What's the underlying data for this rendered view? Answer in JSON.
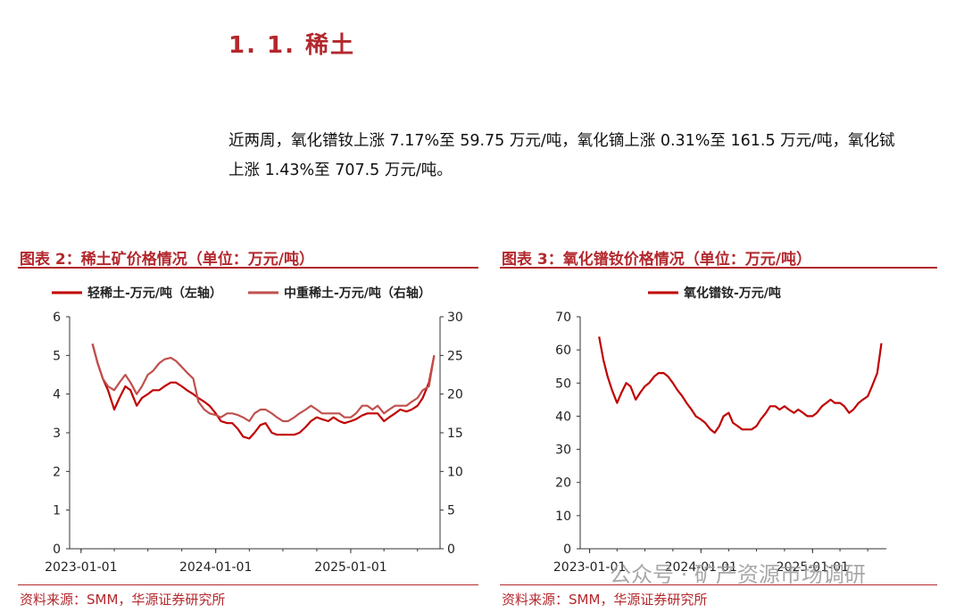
{
  "section": {
    "title": "1. 1. 稀土",
    "paragraph_line1": "近两周，氧化镨钕上涨 7.17%至 59.75 万元/吨，氧化镝上涨 0.31%至 161.5 万元/吨，氧化铽",
    "paragraph_line2": "上涨 1.43%至 707.5 万元/吨。"
  },
  "figure2": {
    "title": "图表 2：稀土矿价格情况（单位：万元/吨）",
    "source": "资料来源：SMM，华源证券研究所"
  },
  "figure3": {
    "title": "图表 3：氧化镨钕价格情况（单位：万元/吨）",
    "source": "资料来源：SMM，华源证券研究所"
  },
  "watermark": "公众号 · 矿产资源市场调研",
  "colors": {
    "accent": "#b3282d",
    "series_light": "#c00000",
    "series_heavy": "#c0504d"
  },
  "chart_data": [
    {
      "type": "line",
      "x_ticks": [
        "2023-01-01",
        "2024-01-01",
        "2025-01-01"
      ],
      "ylim_left": [
        0,
        6
      ],
      "yticks_left": [
        "0",
        "1",
        "2",
        "3",
        "4",
        "5",
        "6"
      ],
      "ylim_right": [
        0,
        30
      ],
      "yticks_right": [
        "0",
        "5",
        "10",
        "15",
        "20",
        "25",
        "30"
      ],
      "legend_position": "top",
      "series": [
        {
          "name": "轻稀土-万元/吨（左轴）",
          "axis": "left",
          "x": [
            "2023-02-01",
            "2023-02-15",
            "2023-03-01",
            "2023-03-15",
            "2023-04-01",
            "2023-04-15",
            "2023-05-01",
            "2023-05-15",
            "2023-06-01",
            "2023-06-15",
            "2023-07-01",
            "2023-07-15",
            "2023-08-01",
            "2023-08-15",
            "2023-09-01",
            "2023-09-15",
            "2023-10-01",
            "2023-10-15",
            "2023-11-01",
            "2023-11-15",
            "2023-12-01",
            "2023-12-15",
            "2024-01-01",
            "2024-01-15",
            "2024-02-01",
            "2024-02-15",
            "2024-03-01",
            "2024-03-15",
            "2024-04-01",
            "2024-04-15",
            "2024-05-01",
            "2024-05-15",
            "2024-06-01",
            "2024-06-15",
            "2024-07-01",
            "2024-07-15",
            "2024-08-01",
            "2024-08-15",
            "2024-09-01",
            "2024-09-15",
            "2024-10-01",
            "2024-10-15",
            "2024-11-01",
            "2024-11-15",
            "2024-12-01",
            "2024-12-15",
            "2025-01-01",
            "2025-01-15",
            "2025-02-01",
            "2025-02-15",
            "2025-03-01",
            "2025-03-15",
            "2025-04-01",
            "2025-04-15",
            "2025-05-01",
            "2025-05-15",
            "2025-06-01",
            "2025-06-15",
            "2025-07-01",
            "2025-07-15",
            "2025-08-01",
            "2025-08-15"
          ],
          "values": [
            5.3,
            4.8,
            4.4,
            4.1,
            3.6,
            3.9,
            4.2,
            4.1,
            3.7,
            3.9,
            4.0,
            4.1,
            4.1,
            4.2,
            4.3,
            4.3,
            4.2,
            4.1,
            4.0,
            3.9,
            3.8,
            3.7,
            3.5,
            3.3,
            3.25,
            3.25,
            3.1,
            2.9,
            2.85,
            3.0,
            3.2,
            3.25,
            3.0,
            2.95,
            2.95,
            2.95,
            2.95,
            3.0,
            3.15,
            3.3,
            3.4,
            3.35,
            3.3,
            3.4,
            3.3,
            3.25,
            3.3,
            3.35,
            3.45,
            3.5,
            3.5,
            3.5,
            3.3,
            3.4,
            3.5,
            3.6,
            3.55,
            3.6,
            3.7,
            3.9,
            4.3,
            5.0
          ]
        },
        {
          "name": "中重稀土-万元/吨（右轴）",
          "axis": "right",
          "x": [
            "2023-02-01",
            "2023-02-15",
            "2023-03-01",
            "2023-03-15",
            "2023-04-01",
            "2023-04-15",
            "2023-05-01",
            "2023-05-15",
            "2023-06-01",
            "2023-06-15",
            "2023-07-01",
            "2023-07-15",
            "2023-08-01",
            "2023-08-15",
            "2023-09-01",
            "2023-09-15",
            "2023-10-01",
            "2023-10-15",
            "2023-11-01",
            "2023-11-15",
            "2023-12-01",
            "2023-12-15",
            "2024-01-01",
            "2024-01-15",
            "2024-02-01",
            "2024-02-15",
            "2024-03-01",
            "2024-03-15",
            "2024-04-01",
            "2024-04-15",
            "2024-05-01",
            "2024-05-15",
            "2024-06-01",
            "2024-06-15",
            "2024-07-01",
            "2024-07-15",
            "2024-08-01",
            "2024-08-15",
            "2024-09-01",
            "2024-09-15",
            "2024-10-01",
            "2024-10-15",
            "2024-11-01",
            "2024-11-15",
            "2024-12-01",
            "2024-12-15",
            "2025-01-01",
            "2025-01-15",
            "2025-02-01",
            "2025-02-15",
            "2025-03-01",
            "2025-03-15",
            "2025-04-01",
            "2025-04-15",
            "2025-05-01",
            "2025-05-15",
            "2025-06-01",
            "2025-06-15",
            "2025-07-01",
            "2025-07-15",
            "2025-08-01",
            "2025-08-15"
          ],
          "values": [
            26.5,
            24.0,
            22.0,
            21.0,
            20.5,
            21.5,
            22.5,
            21.5,
            20.0,
            21.0,
            22.5,
            23.0,
            24.0,
            24.5,
            24.7,
            24.3,
            23.5,
            22.8,
            22.0,
            19.0,
            18.0,
            17.5,
            17.3,
            17.0,
            17.5,
            17.5,
            17.3,
            17.0,
            16.5,
            17.5,
            18.0,
            18.0,
            17.5,
            17.0,
            16.5,
            16.5,
            17.0,
            17.5,
            18.0,
            18.5,
            18.0,
            17.5,
            17.5,
            17.5,
            17.5,
            17.0,
            17.0,
            17.5,
            18.5,
            18.5,
            18.0,
            18.5,
            17.5,
            18.0,
            18.5,
            18.5,
            18.5,
            19.0,
            19.5,
            20.5,
            21.0,
            25.0
          ]
        }
      ]
    },
    {
      "type": "line",
      "x_ticks": [
        "2023-01-01",
        "2024-01-01",
        "2025-01-01"
      ],
      "ylim": [
        0,
        70
      ],
      "yticks": [
        "0",
        "10",
        "20",
        "30",
        "40",
        "50",
        "60",
        "70"
      ],
      "legend_position": "top",
      "series": [
        {
          "name": "氧化镨钕-万元/吨",
          "x": [
            "2023-02-01",
            "2023-02-15",
            "2023-03-01",
            "2023-03-15",
            "2023-04-01",
            "2023-04-15",
            "2023-05-01",
            "2023-05-15",
            "2023-06-01",
            "2023-06-15",
            "2023-07-01",
            "2023-07-15",
            "2023-08-01",
            "2023-08-15",
            "2023-09-01",
            "2023-09-15",
            "2023-10-01",
            "2023-10-15",
            "2023-11-01",
            "2023-11-15",
            "2023-12-01",
            "2023-12-15",
            "2024-01-01",
            "2024-01-15",
            "2024-02-01",
            "2024-02-15",
            "2024-03-01",
            "2024-03-15",
            "2024-04-01",
            "2024-04-15",
            "2024-05-01",
            "2024-05-15",
            "2024-06-01",
            "2024-06-15",
            "2024-07-01",
            "2024-07-15",
            "2024-08-01",
            "2024-08-15",
            "2024-09-01",
            "2024-09-15",
            "2024-10-01",
            "2024-10-15",
            "2024-11-01",
            "2024-11-15",
            "2024-12-01",
            "2024-12-15",
            "2025-01-01",
            "2025-01-15",
            "2025-02-01",
            "2025-02-15",
            "2025-03-01",
            "2025-03-15",
            "2025-04-01",
            "2025-04-15",
            "2025-05-01",
            "2025-05-15",
            "2025-06-01",
            "2025-06-15",
            "2025-07-01",
            "2025-07-15",
            "2025-08-01",
            "2025-08-15"
          ],
          "values": [
            64,
            57,
            52,
            48,
            44,
            47,
            50,
            49,
            45,
            47,
            49,
            50,
            52,
            53,
            53,
            52,
            50,
            48,
            46,
            44,
            42,
            40,
            39,
            38,
            36,
            35,
            37,
            40,
            41,
            38,
            37,
            36,
            36,
            36,
            37,
            39,
            41,
            43,
            43,
            42,
            43,
            42,
            41,
            42,
            41,
            40,
            40,
            41,
            43,
            44,
            45,
            44,
            44,
            43,
            41,
            42,
            44,
            45,
            46,
            49,
            53,
            62
          ]
        }
      ]
    }
  ]
}
